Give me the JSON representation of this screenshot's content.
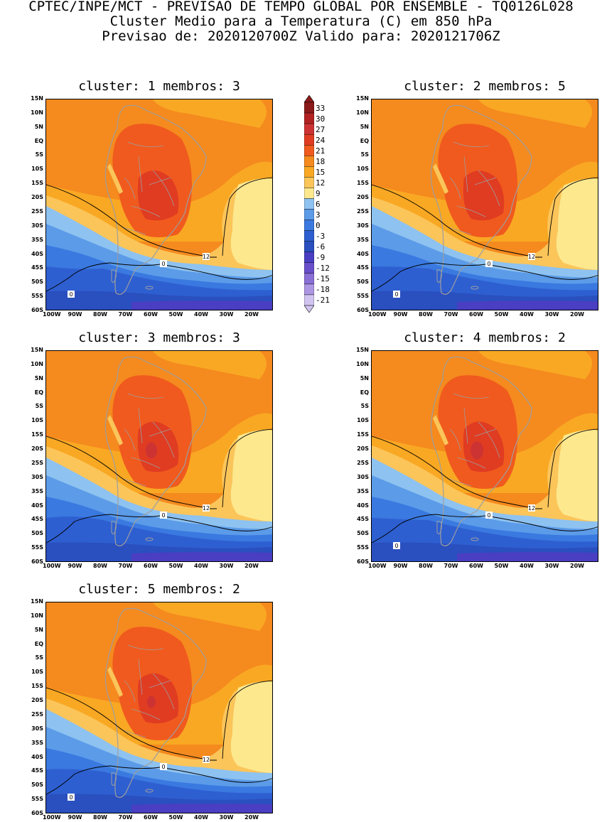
{
  "header": {
    "line1": "CPTEC/INPE/MCT - PREVISAO DE TEMPO GLOBAL POR ENSEMBLE - TQ0126L028",
    "line2": "Cluster Medio para a Temperatura (C) em 850 hPa",
    "line3": "Previsao de: 2020120700Z   Valido para: 2020121706Z"
  },
  "lat_labels": [
    "15N",
    "10N",
    "5N",
    "EQ",
    "5S",
    "10S",
    "15S",
    "20S",
    "25S",
    "30S",
    "35S",
    "40S",
    "45S",
    "50S",
    "55S",
    "60S"
  ],
  "lon_labels": [
    "100W",
    "90W",
    "80W",
    "70W",
    "60W",
    "50W",
    "40W",
    "30W",
    "20W"
  ],
  "colorbar": {
    "labels": [
      "33",
      "30",
      "27",
      "24",
      "21",
      "18",
      "15",
      "12",
      "9",
      "6",
      "3",
      "0",
      "-3",
      "-6",
      "-9",
      "-12",
      "-15",
      "-18",
      "-21"
    ],
    "colors": [
      "#8b1a1a",
      "#b22222",
      "#cd3333",
      "#e03c22",
      "#f05a1e",
      "#f58a1e",
      "#f9a823",
      "#fbc55a",
      "#fde88e",
      "#8ec2f0",
      "#5b9be8",
      "#3a79e0",
      "#2e5fd1",
      "#2a4fbe",
      "#4a3ec2",
      "#6a4fcb",
      "#8a6fd6",
      "#ac95e3",
      "#d1c4f0"
    ]
  },
  "panels": [
    {
      "title": "cluster: 1   membros: 3",
      "contour_12": "12",
      "contour_0a": "0",
      "contour_0b": "0"
    },
    {
      "title": "cluster: 2   membros: 5",
      "contour_12": "12",
      "contour_0a": "0",
      "contour_0b": "0"
    },
    {
      "title": "cluster: 3   membros: 3",
      "contour_12": "12",
      "contour_0a": "0",
      "contour_0b": ""
    },
    {
      "title": "cluster: 4   membros: 2",
      "contour_12": "12",
      "contour_0a": "0",
      "contour_0b": "0"
    },
    {
      "title": "cluster: 5   membros: 2",
      "contour_12": "12",
      "contour_0a": "0",
      "contour_0b": "0"
    }
  ]
}
